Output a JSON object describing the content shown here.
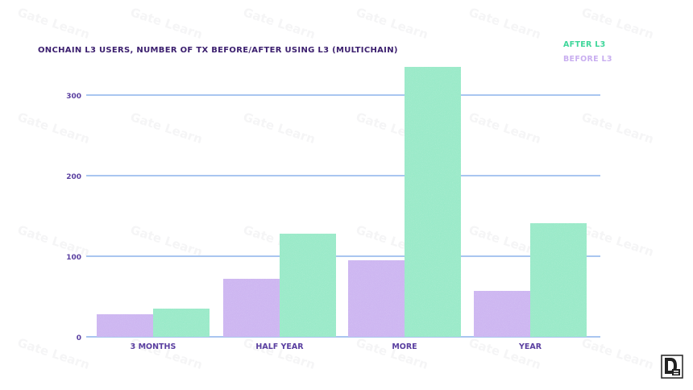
{
  "chart_data": {
    "type": "bar",
    "title": "ONCHAIN L3 USERS, NUMBER OF TX BEFORE/AFTER USING L3 (MULTICHAIN)",
    "categories": [
      "3 MONTHS",
      "HALF YEAR",
      "MORE",
      "YEAR"
    ],
    "series": [
      {
        "name": "BEFORE L3",
        "color": "#c9aff0",
        "values": [
          28,
          72,
          95,
          57
        ]
      },
      {
        "name": "AFTER L3",
        "color": "#8fe8c4",
        "values": [
          35,
          128,
          335,
          141
        ]
      }
    ],
    "y_ticks": [
      0,
      100,
      200,
      300
    ],
    "ylim": [
      0,
      340
    ],
    "grid": true,
    "grid_color": "#a9c6f0",
    "legend_position": "top-right",
    "title_color": "#3b1f6e",
    "tick_color": "#5a3fa0"
  },
  "watermark": {
    "text": "Gate Learn"
  }
}
